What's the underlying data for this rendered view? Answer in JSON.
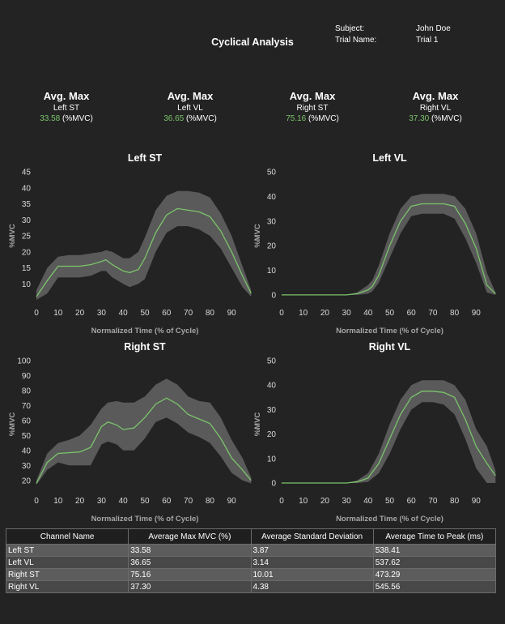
{
  "header": {
    "title": "Cyclical Analysis",
    "subject_label": "Subject:",
    "subject_value": "John Doe",
    "trial_label": "Trial Name:",
    "trial_value": "Trial 1"
  },
  "stats": [
    {
      "heading": "Avg. Max",
      "channel": "Left ST",
      "value": "33.58",
      "unit": "(%MVC)"
    },
    {
      "heading": "Avg. Max",
      "channel": "Left VL",
      "value": "36.65",
      "unit": "(%MVC)"
    },
    {
      "heading": "Avg. Max",
      "channel": "Right ST",
      "value": "75.16",
      "unit": "(%MVC)"
    },
    {
      "heading": "Avg. Max",
      "channel": "Right VL",
      "value": "37.30",
      "unit": "(%MVC)"
    }
  ],
  "colors": {
    "mean_line": "#7bc46b",
    "sd_band": "#5a5a5a",
    "background": "#232323",
    "value_text": "#7bc46b"
  },
  "chart_data": [
    {
      "type": "area",
      "title": "Left ST",
      "xlabel": "Normalized Time (% of Cycle)",
      "ylabel": "%MVC",
      "xlim": [
        0,
        100
      ],
      "ylim": [
        5,
        45
      ],
      "xticks": [
        0,
        10,
        20,
        30,
        40,
        50,
        60,
        70,
        80,
        90
      ],
      "yticks": [
        10,
        15,
        20,
        25,
        30,
        35,
        40,
        45
      ],
      "x": [
        0,
        5,
        10,
        15,
        20,
        25,
        30,
        32,
        35,
        40,
        43,
        47,
        50,
        55,
        60,
        65,
        70,
        75,
        80,
        85,
        90,
        95,
        99
      ],
      "mean": [
        6,
        11,
        15.5,
        15.5,
        15.5,
        16,
        17,
        17.5,
        16,
        14,
        13.5,
        14.5,
        18,
        26,
        31.5,
        33.5,
        33,
        32.5,
        31,
        26.5,
        20,
        12.5,
        7
      ],
      "upper": [
        8,
        15,
        18.5,
        19,
        19,
        19.5,
        20,
        20.5,
        20,
        18,
        18,
        20,
        24.5,
        33,
        37.5,
        39,
        39,
        38.5,
        37,
        32,
        25,
        15.5,
        8
      ],
      "lower": [
        5,
        7,
        12,
        12,
        12,
        12.5,
        14,
        14,
        12,
        10,
        9,
        10,
        11.5,
        20,
        26,
        28,
        28,
        27,
        25,
        21,
        15,
        9,
        6
      ]
    },
    {
      "type": "area",
      "title": "Left VL",
      "xlabel": "Normalized Time (% of Cycle)",
      "ylabel": "%MVC",
      "xlim": [
        0,
        100
      ],
      "ylim": [
        -2,
        50
      ],
      "xticks": [
        0,
        10,
        20,
        30,
        40,
        50,
        60,
        70,
        80,
        90
      ],
      "yticks": [
        0,
        10,
        20,
        30,
        40,
        50
      ],
      "x": [
        0,
        10,
        20,
        25,
        30,
        35,
        40,
        42,
        45,
        50,
        55,
        60,
        65,
        70,
        75,
        80,
        85,
        90,
        95,
        99
      ],
      "mean": [
        0,
        0,
        0,
        0,
        0,
        0.5,
        2,
        3.5,
        8,
        20,
        30,
        36,
        37,
        37,
        37,
        36,
        29,
        19,
        4,
        0.5
      ],
      "upper": [
        0,
        0,
        0,
        0,
        0,
        1,
        4,
        6,
        12,
        25,
        35,
        40,
        41,
        41,
        41,
        40,
        35,
        25,
        9,
        1
      ],
      "lower": [
        0,
        0,
        0,
        0,
        0,
        0,
        0.5,
        1.5,
        5,
        15,
        25,
        32,
        33,
        33,
        33,
        31,
        23,
        13,
        1,
        0
      ]
    },
    {
      "type": "area",
      "title": "Right ST",
      "xlabel": "Normalized Time (% of Cycle)",
      "ylabel": "%MVC",
      "xlim": [
        0,
        100
      ],
      "ylim": [
        15,
        100
      ],
      "xticks": [
        0,
        10,
        20,
        30,
        40,
        50,
        60,
        70,
        80,
        90
      ],
      "yticks": [
        20,
        30,
        40,
        50,
        60,
        70,
        80,
        90,
        100
      ],
      "x": [
        0,
        5,
        10,
        15,
        20,
        25,
        30,
        33,
        37,
        40,
        45,
        50,
        55,
        60,
        65,
        70,
        75,
        80,
        85,
        90,
        95,
        99
      ],
      "mean": [
        18,
        32,
        38,
        38.5,
        39,
        42,
        56,
        59,
        57,
        54,
        55,
        62,
        71,
        75,
        71,
        64,
        61,
        58,
        48,
        35,
        27,
        20
      ],
      "upper": [
        20,
        38,
        45,
        47,
        50,
        57,
        68,
        72,
        73,
        72,
        72,
        76,
        84,
        88,
        84,
        76,
        73,
        72,
        62,
        47,
        35,
        22
      ],
      "lower": [
        17,
        27,
        32,
        30,
        30,
        30,
        44,
        46,
        44,
        40,
        40,
        48,
        59,
        62,
        58,
        52,
        49,
        45,
        36,
        25,
        20,
        18
      ]
    },
    {
      "type": "area",
      "title": "Right VL",
      "xlabel": "Normalized Time (% of Cycle)",
      "ylabel": "%MVC",
      "xlim": [
        0,
        100
      ],
      "ylim": [
        -2,
        50
      ],
      "xticks": [
        0,
        10,
        20,
        30,
        40,
        50,
        60,
        70,
        80,
        90
      ],
      "yticks": [
        0,
        10,
        20,
        30,
        40,
        50
      ],
      "x": [
        0,
        10,
        20,
        30,
        35,
        40,
        45,
        50,
        55,
        60,
        65,
        70,
        75,
        80,
        85,
        90,
        95,
        99
      ],
      "mean": [
        0,
        0,
        0,
        0,
        0.5,
        2,
        8,
        18,
        28,
        35,
        37.5,
        37.5,
        37,
        35,
        26,
        15,
        8,
        3
      ],
      "upper": [
        0,
        0,
        0,
        0,
        1,
        4,
        12,
        24,
        34,
        40,
        42,
        42,
        42,
        40,
        34,
        22,
        15,
        5
      ],
      "lower": [
        0,
        0,
        0,
        0,
        0,
        0.5,
        4,
        12,
        22,
        30,
        33,
        33,
        32,
        28,
        18,
        6,
        0,
        0
      ]
    }
  ],
  "table": {
    "headers": [
      "Channel Name",
      "Average Max MVC (%)",
      "Average Standard Deviation",
      "Average Time to Peak (ms)"
    ],
    "rows": [
      [
        "Left ST",
        "33.58",
        "3.87",
        "538.41"
      ],
      [
        "Left VL",
        "36.65",
        "3.14",
        "537.62"
      ],
      [
        "Right ST",
        "75.16",
        "10.01",
        "473.29"
      ],
      [
        "Right VL",
        "37.30",
        "4.38",
        "545.56"
      ]
    ]
  }
}
